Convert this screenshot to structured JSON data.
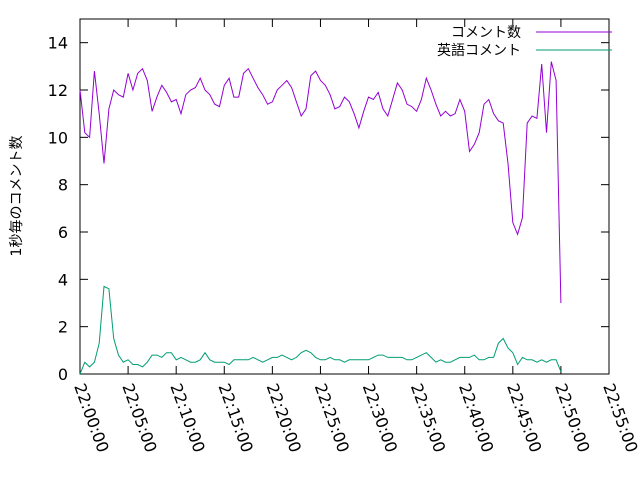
{
  "chart_data": {
    "type": "line",
    "title": "",
    "xlabel": "",
    "ylabel": "1秒毎のコメント数",
    "xlim": [
      "22:00:00",
      "22:55:00"
    ],
    "ylim": [
      0,
      15
    ],
    "yticks": [
      0,
      2,
      4,
      6,
      8,
      10,
      12,
      14
    ],
    "xticks": [
      "22:00:00",
      "22:05:00",
      "22:10:00",
      "22:15:00",
      "22:20:00",
      "22:25:00",
      "22:30:00",
      "22:35:00",
      "22:40:00",
      "22:45:00",
      "22:50:00",
      "22:55:00"
    ],
    "grid": false,
    "legend_position": "top-right",
    "series": [
      {
        "name": "コメント数",
        "color": "#9400d3",
        "x": [
          "22:00:00",
          "22:00:30",
          "22:01:00",
          "22:01:30",
          "22:02:00",
          "22:02:30",
          "22:03:00",
          "22:03:30",
          "22:04:00",
          "22:04:30",
          "22:05:00",
          "22:05:30",
          "22:06:00",
          "22:06:30",
          "22:07:00",
          "22:07:30",
          "22:08:00",
          "22:08:30",
          "22:09:00",
          "22:09:30",
          "22:10:00",
          "22:10:30",
          "22:11:00",
          "22:11:30",
          "22:12:00",
          "22:12:30",
          "22:13:00",
          "22:13:30",
          "22:14:00",
          "22:14:30",
          "22:15:00",
          "22:15:30",
          "22:16:00",
          "22:16:30",
          "22:17:00",
          "22:17:30",
          "22:18:00",
          "22:18:30",
          "22:19:00",
          "22:19:30",
          "22:20:00",
          "22:20:30",
          "22:21:00",
          "22:21:30",
          "22:22:00",
          "22:22:30",
          "22:23:00",
          "22:23:30",
          "22:24:00",
          "22:24:30",
          "22:25:00",
          "22:25:30",
          "22:26:00",
          "22:26:30",
          "22:27:00",
          "22:27:30",
          "22:28:00",
          "22:28:30",
          "22:29:00",
          "22:29:30",
          "22:30:00",
          "22:30:30",
          "22:31:00",
          "22:31:30",
          "22:32:00",
          "22:32:30",
          "22:33:00",
          "22:33:30",
          "22:34:00",
          "22:34:30",
          "22:35:00",
          "22:35:30",
          "22:36:00",
          "22:36:30",
          "22:37:00",
          "22:37:30",
          "22:38:00",
          "22:38:30",
          "22:39:00",
          "22:39:30",
          "22:40:00",
          "22:40:30",
          "22:41:00",
          "22:41:30",
          "22:42:00",
          "22:42:30",
          "22:43:00",
          "22:43:30",
          "22:44:00",
          "22:44:30",
          "22:45:00",
          "22:45:30",
          "22:46:00",
          "22:46:30",
          "22:47:00",
          "22:47:30",
          "22:48:00",
          "22:48:30",
          "22:49:00",
          "22:49:30",
          "22:50:00"
        ],
        "y": [
          12.0,
          10.2,
          10.0,
          12.8,
          11.0,
          8.9,
          11.2,
          12.0,
          11.8,
          11.7,
          12.7,
          12.0,
          12.7,
          12.9,
          12.4,
          11.1,
          11.7,
          12.2,
          11.9,
          11.5,
          11.6,
          11.0,
          11.8,
          12.0,
          12.1,
          12.5,
          12.0,
          11.8,
          11.4,
          11.3,
          12.2,
          12.5,
          11.7,
          11.7,
          12.7,
          12.9,
          12.5,
          12.1,
          11.8,
          11.4,
          11.5,
          12.0,
          12.2,
          12.4,
          12.1,
          11.5,
          10.9,
          11.2,
          12.6,
          12.8,
          12.4,
          12.2,
          11.8,
          11.2,
          11.3,
          11.7,
          11.5,
          11.0,
          10.4,
          11.1,
          11.7,
          11.6,
          11.9,
          11.2,
          10.9,
          11.6,
          12.3,
          12.0,
          11.4,
          11.3,
          11.1,
          11.6,
          12.5,
          12.0,
          11.4,
          10.9,
          11.1,
          10.9,
          11.0,
          11.6,
          11.1,
          9.4,
          9.7,
          10.2,
          11.4,
          11.6,
          11.0,
          10.7,
          10.6,
          8.9,
          6.4,
          5.9,
          6.6,
          10.6,
          10.9,
          10.8,
          13.1,
          10.2,
          13.2,
          12.4,
          3.0
        ]
      },
      {
        "name": "英語コメント",
        "color": "#009e73",
        "x": [
          "22:00:00",
          "22:00:30",
          "22:01:00",
          "22:01:30",
          "22:02:00",
          "22:02:30",
          "22:03:00",
          "22:03:30",
          "22:04:00",
          "22:04:30",
          "22:05:00",
          "22:05:30",
          "22:06:00",
          "22:06:30",
          "22:07:00",
          "22:07:30",
          "22:08:00",
          "22:08:30",
          "22:09:00",
          "22:09:30",
          "22:10:00",
          "22:10:30",
          "22:11:00",
          "22:11:30",
          "22:12:00",
          "22:12:30",
          "22:13:00",
          "22:13:30",
          "22:14:00",
          "22:14:30",
          "22:15:00",
          "22:15:30",
          "22:16:00",
          "22:16:30",
          "22:17:00",
          "22:17:30",
          "22:18:00",
          "22:18:30",
          "22:19:00",
          "22:19:30",
          "22:20:00",
          "22:20:30",
          "22:21:00",
          "22:21:30",
          "22:22:00",
          "22:22:30",
          "22:23:00",
          "22:23:30",
          "22:24:00",
          "22:24:30",
          "22:25:00",
          "22:25:30",
          "22:26:00",
          "22:26:30",
          "22:27:00",
          "22:27:30",
          "22:28:00",
          "22:28:30",
          "22:29:00",
          "22:29:30",
          "22:30:00",
          "22:30:30",
          "22:31:00",
          "22:31:30",
          "22:32:00",
          "22:32:30",
          "22:33:00",
          "22:33:30",
          "22:34:00",
          "22:34:30",
          "22:35:00",
          "22:35:30",
          "22:36:00",
          "22:36:30",
          "22:37:00",
          "22:37:30",
          "22:38:00",
          "22:38:30",
          "22:39:00",
          "22:39:30",
          "22:40:00",
          "22:40:30",
          "22:41:00",
          "22:41:30",
          "22:42:00",
          "22:42:30",
          "22:43:00",
          "22:43:30",
          "22:44:00",
          "22:44:30",
          "22:45:00",
          "22:45:30",
          "22:46:00",
          "22:46:30",
          "22:47:00",
          "22:47:30",
          "22:48:00",
          "22:48:30",
          "22:49:00",
          "22:49:30",
          "22:50:00"
        ],
        "y": [
          0.0,
          0.5,
          0.3,
          0.5,
          1.3,
          3.7,
          3.6,
          1.5,
          0.8,
          0.5,
          0.6,
          0.4,
          0.4,
          0.3,
          0.5,
          0.8,
          0.8,
          0.7,
          0.9,
          0.9,
          0.6,
          0.7,
          0.6,
          0.5,
          0.5,
          0.6,
          0.9,
          0.6,
          0.5,
          0.5,
          0.5,
          0.4,
          0.6,
          0.6,
          0.6,
          0.6,
          0.7,
          0.6,
          0.5,
          0.6,
          0.7,
          0.7,
          0.8,
          0.7,
          0.6,
          0.7,
          0.9,
          1.0,
          0.9,
          0.7,
          0.6,
          0.6,
          0.7,
          0.6,
          0.6,
          0.5,
          0.6,
          0.6,
          0.6,
          0.6,
          0.6,
          0.7,
          0.8,
          0.8,
          0.7,
          0.7,
          0.7,
          0.7,
          0.6,
          0.6,
          0.7,
          0.8,
          0.9,
          0.7,
          0.5,
          0.6,
          0.5,
          0.5,
          0.6,
          0.7,
          0.7,
          0.7,
          0.8,
          0.6,
          0.6,
          0.7,
          0.7,
          1.3,
          1.5,
          1.1,
          0.9,
          0.4,
          0.7,
          0.6,
          0.6,
          0.5,
          0.6,
          0.5,
          0.6,
          0.6,
          0.1
        ]
      }
    ]
  }
}
